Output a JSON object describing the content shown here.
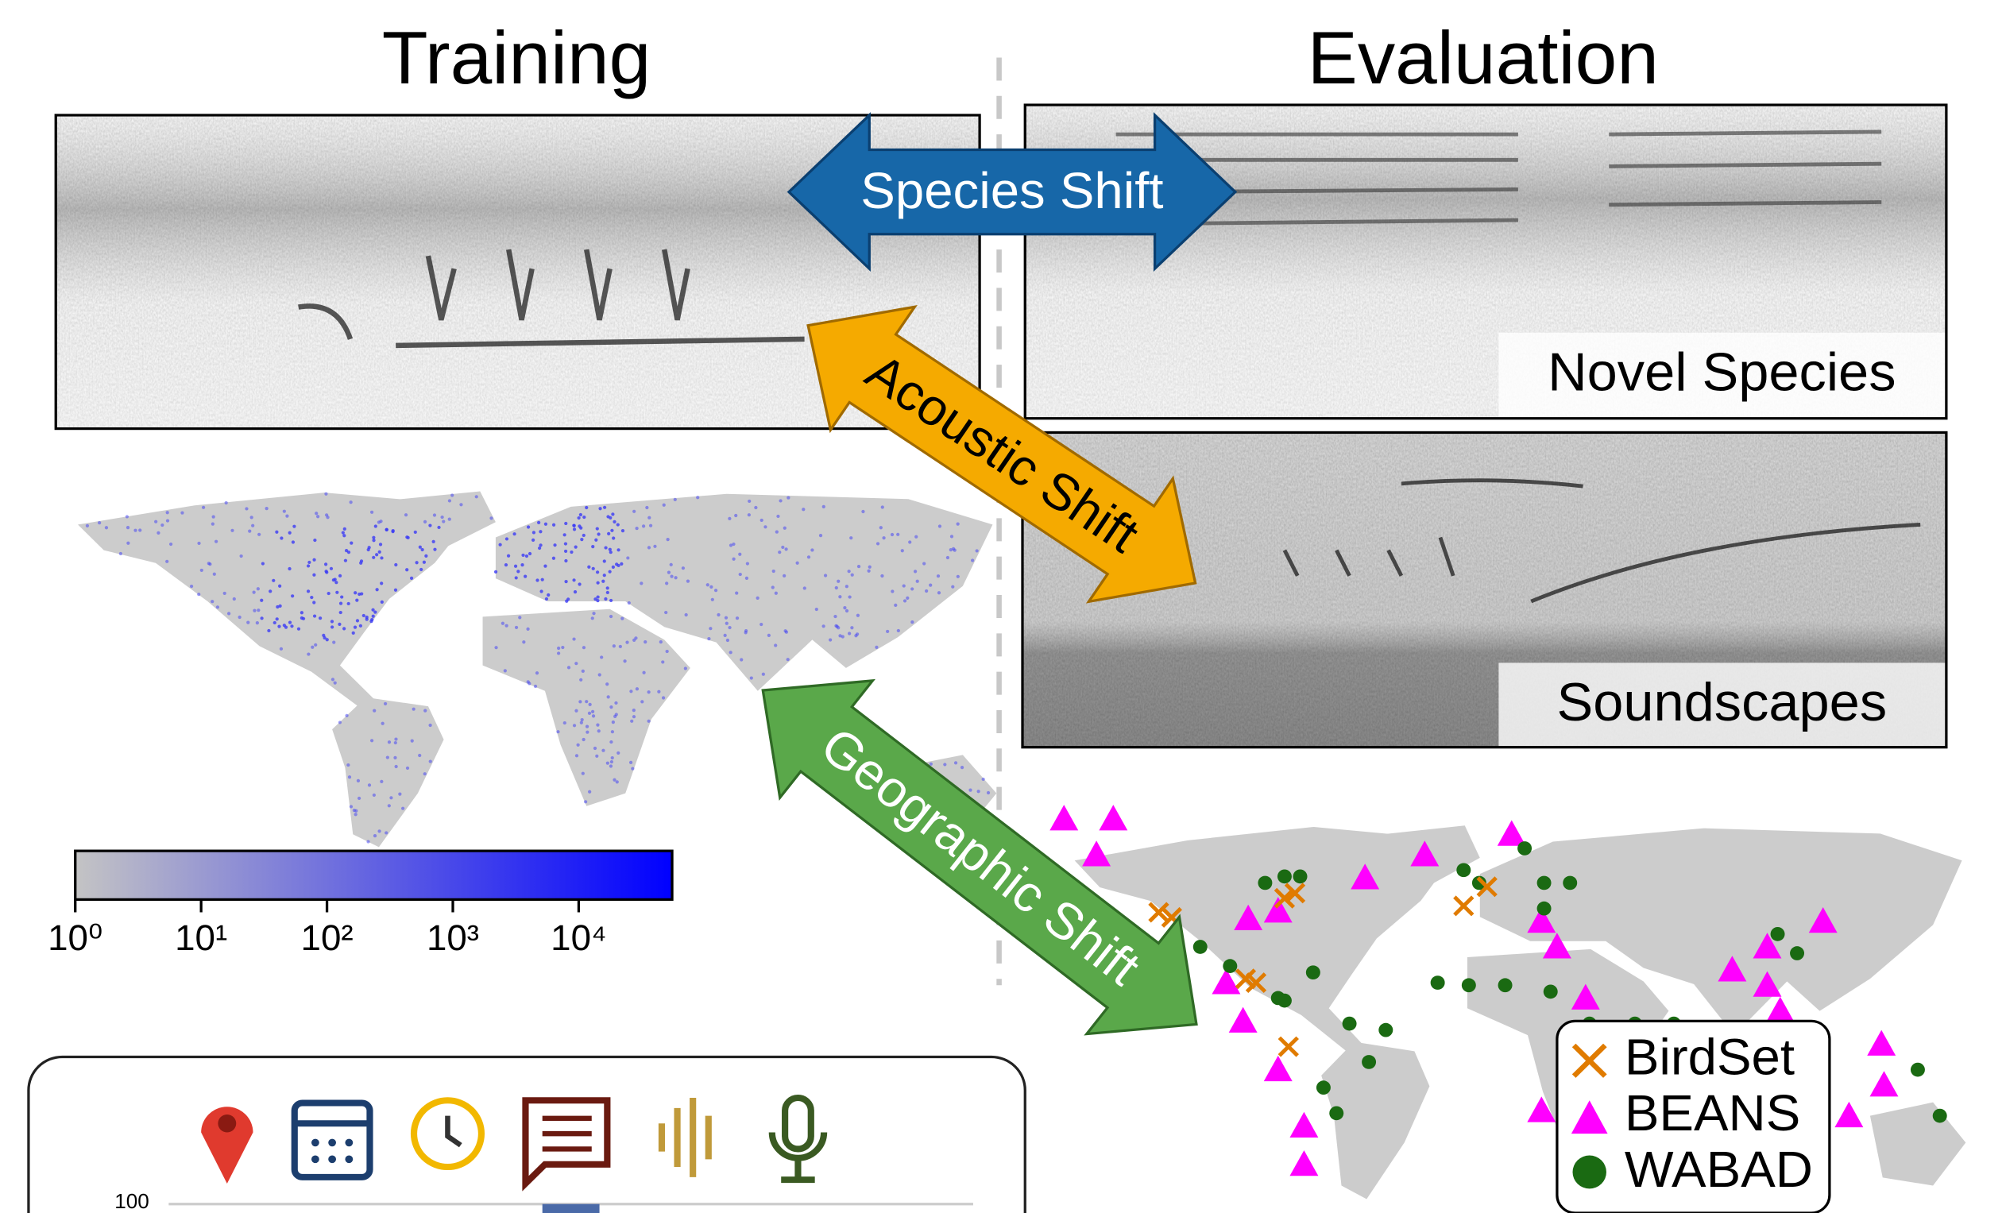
{
  "titles": {
    "training": "Training",
    "evaluation": "Evaluation"
  },
  "shifts": {
    "species": "Species Shift",
    "acoustic": "Acoustic Shift",
    "geographic": "Geographic Shift"
  },
  "eval_labels": {
    "novel": "Novel Species",
    "soundscapes": "Soundscapes"
  },
  "colorbar_ticks": [
    "10⁰",
    "10¹",
    "10²",
    "10³",
    "10⁴"
  ],
  "legend": [
    "BirdSet",
    "BEANS",
    "WABAD"
  ],
  "bottom_tick": "100"
}
